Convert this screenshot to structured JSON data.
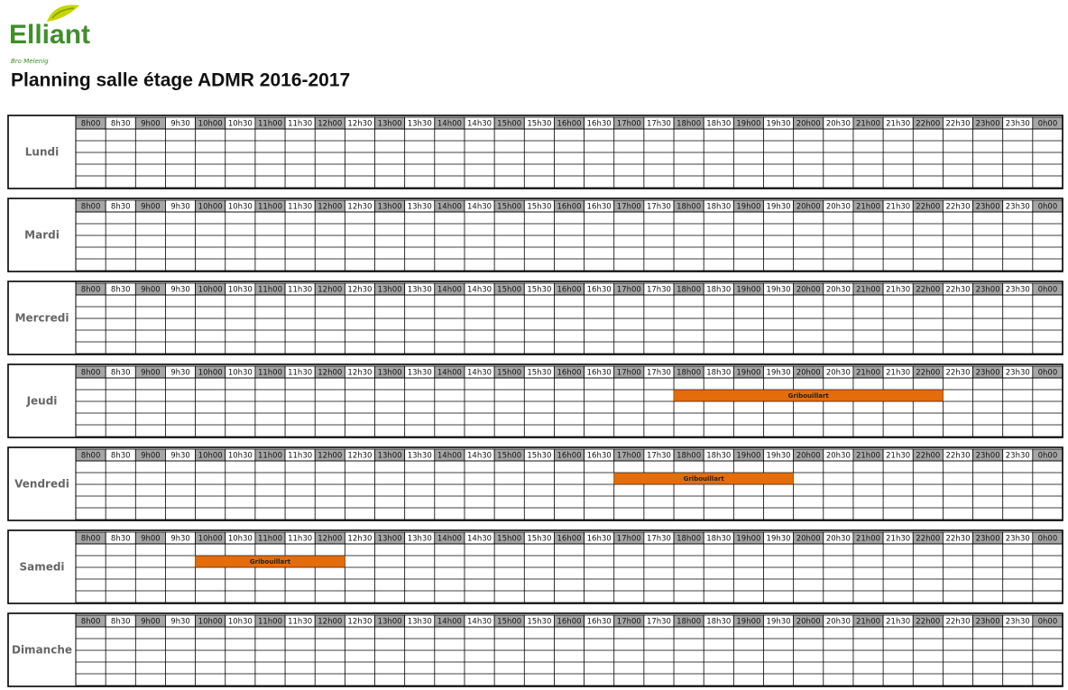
{
  "header": {
    "logo": "Elliant",
    "logo_subtitle": "Bro Melenig",
    "title": "Planning salle étage ADMR 2016-2017"
  },
  "time_slots": [
    "8h00",
    "8h30",
    "9h00",
    "9h30",
    "10h00",
    "10h30",
    "11h00",
    "11h30",
    "12h00",
    "12h30",
    "13h00",
    "13h30",
    "14h00",
    "14h30",
    "15h00",
    "15h30",
    "16h00",
    "16h30",
    "17h00",
    "17h30",
    "18h00",
    "18h30",
    "19h00",
    "19h30",
    "20h00",
    "20h30",
    "21h00",
    "21h30",
    "22h00",
    "22h30",
    "23h00",
    "23h30",
    "0h00"
  ],
  "days": [
    {
      "name": "Lundi"
    },
    {
      "name": "Mardi"
    },
    {
      "name": "Mercredi"
    },
    {
      "name": "Jeudi",
      "booking": {
        "label": "Gribouillart",
        "from": "18h00",
        "to": "22h30"
      }
    },
    {
      "name": "Vendredi",
      "booking": {
        "label": "Gribouillart",
        "from": "17h00",
        "to": "20h00"
      }
    },
    {
      "name": "Samedi",
      "booking": {
        "label": "Gribouillart",
        "from": "10h00",
        "to": "12h30"
      }
    },
    {
      "name": "Dimanche"
    }
  ]
}
